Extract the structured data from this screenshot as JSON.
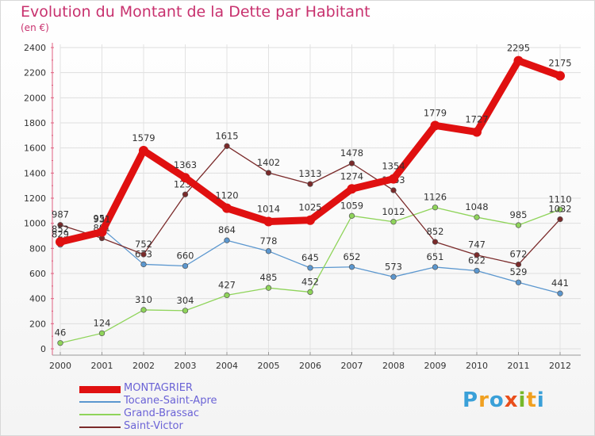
{
  "title": "Evolution du Montant de la Dette par Habitant",
  "subtitle": "(en €)",
  "logo": {
    "text": "Proxiti",
    "letters": [
      "P",
      "r",
      "o",
      "x",
      "i",
      "t",
      "i"
    ],
    "colors": [
      "#3aa0d8",
      "#f0a020",
      "#3aa0d8",
      "#e94e1b",
      "#76b82a",
      "#f0a020",
      "#3aa0d8"
    ]
  },
  "chart_data": {
    "type": "line",
    "title": "Evolution du Montant de la Dette par Habitant",
    "subtitle": "(en €)",
    "x": [
      "2000",
      "2001",
      "2002",
      "2003",
      "2004",
      "2005",
      "2006",
      "2007",
      "2008",
      "2009",
      "2010",
      "2011",
      "2012"
    ],
    "ylim": [
      0,
      2400
    ],
    "yticks": [
      "0",
      "200",
      "400",
      "600",
      "800",
      "1000",
      "1200",
      "1400",
      "1600",
      "1800",
      "2000",
      "2200",
      "2400"
    ],
    "grid": true,
    "legend_position": "bottom-left",
    "series": [
      {
        "name": "Tocane-Saint-Apre",
        "color": "#5b97cf",
        "values": [
          829,
          958,
          673,
          660,
          864,
          778,
          645,
          652,
          573,
          651,
          622,
          529,
          441
        ],
        "labels": [
          "829",
          "958",
          "673",
          "660",
          "864",
          "778",
          "645",
          "652",
          "573",
          "651",
          "622",
          "529",
          "441"
        ]
      },
      {
        "name": "Grand-Brassac",
        "color": "#8fd45a",
        "values": [
          46,
          124,
          310,
          304,
          427,
          485,
          452,
          1059,
          1012,
          1126,
          1048,
          985,
          1110
        ],
        "labels": [
          "46",
          "124",
          "310",
          "304",
          "427",
          "485",
          "452",
          "1059",
          "1012",
          "1126",
          "1048",
          "985",
          "1110"
        ]
      },
      {
        "name": "Saint-Victor",
        "color": "#7a2a2a",
        "values": [
          987,
          881,
          752,
          1230,
          1615,
          1402,
          1313,
          1478,
          1263,
          852,
          747,
          672,
          1032
        ],
        "labels": [
          "987",
          "881",
          "752",
          "1230",
          "1615",
          "1402",
          "1313",
          "1478",
          "1263",
          "852",
          "747",
          "672",
          "1032"
        ]
      },
      {
        "name": "MONTAGRIER",
        "color": "#e01010",
        "values": [
          852,
          931,
          1579,
          1363,
          1120,
          1014,
          1025,
          1274,
          1354,
          1779,
          1727,
          2295,
          2175
        ],
        "labels": [
          "852",
          "931",
          "1579",
          "1363",
          "1120",
          "1014",
          "1025",
          "1274",
          "1354",
          "1779",
          "1727",
          "2295",
          "2175"
        ]
      }
    ],
    "legend": [
      {
        "name": "MONTAGRIER",
        "color": "#e01010"
      },
      {
        "name": "Tocane-Saint-Apre",
        "color": "#5b97cf"
      },
      {
        "name": "Grand-Brassac",
        "color": "#8fd45a"
      },
      {
        "name": "Saint-Victor",
        "color": "#7a2a2a"
      }
    ]
  }
}
